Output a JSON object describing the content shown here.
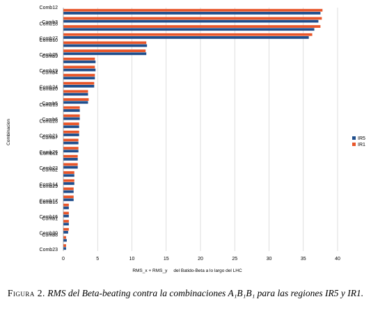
{
  "chart_data": {
    "type": "bar",
    "orientation": "horizontal",
    "categories": [
      "Comb12",
      "Comb3",
      "Comb18",
      "Comb27",
      "Comb10",
      "Comb25",
      "Comb9",
      "Comb19",
      "Comb4",
      "Comb24",
      "Comb20",
      "Comb5",
      "Comb13",
      "Comb6",
      "Comb28",
      "Comb21",
      "Comb7",
      "Comb26",
      "Comb11",
      "Comb22",
      "Comb2",
      "Comb14",
      "Comb29",
      "Comb17",
      "Comb15",
      "Comb16",
      "Comb1",
      "Comb30",
      "Comb8",
      "Comb23"
    ],
    "series": [
      {
        "name": "IR5",
        "color": "#1f4e8c",
        "values": [
          37.5,
          37.2,
          36.6,
          35.8,
          12.2,
          12.1,
          4.7,
          4.7,
          4.6,
          4.5,
          3.6,
          3.6,
          2.4,
          2.4,
          2.3,
          2.3,
          2.2,
          2.2,
          2.1,
          2.1,
          1.6,
          1.6,
          1.5,
          1.5,
          0.8,
          0.8,
          0.8,
          0.7,
          0.5,
          0.4
        ]
      },
      {
        "name": "IR1",
        "color": "#e8562a",
        "values": [
          37.8,
          37.7,
          37.5,
          36.3,
          12.1,
          12.0,
          4.6,
          4.6,
          4.6,
          4.5,
          3.6,
          3.7,
          2.4,
          2.4,
          2.3,
          2.3,
          2.2,
          2.2,
          2.1,
          2.1,
          1.6,
          1.6,
          1.5,
          1.5,
          0.8,
          0.8,
          0.8,
          0.8,
          0.4,
          0.4
        ]
      }
    ],
    "xlim": [
      0,
      40
    ],
    "xticks": [
      "0",
      "5",
      "10",
      "15",
      "20",
      "25",
      "30",
      "35",
      "40"
    ],
    "xlabel": "RMS_x + RMS_y     del Batido-Beta a lo largo del LHC",
    "ylabel": "Combinacion",
    "grid": "vertical",
    "legend_position": "right"
  },
  "caption": {
    "label": "Figura 2.",
    "text": "RMS del Beta-beating contra la combinaciones A₁B₁B₁ para las regiones IR5 y IR1."
  }
}
